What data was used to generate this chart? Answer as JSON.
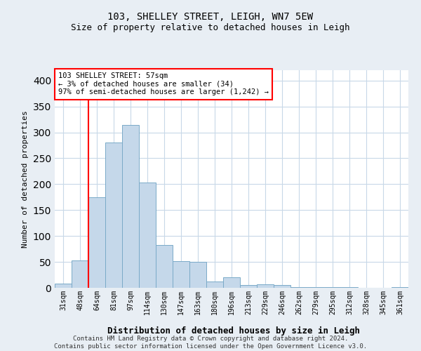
{
  "title1": "103, SHELLEY STREET, LEIGH, WN7 5EW",
  "title2": "Size of property relative to detached houses in Leigh",
  "xlabel": "Distribution of detached houses by size in Leigh",
  "ylabel": "Number of detached properties",
  "bar_color": "#c5d8ea",
  "bar_edge_color": "#7aaac8",
  "categories": [
    "31sqm",
    "48sqm",
    "64sqm",
    "81sqm",
    "97sqm",
    "114sqm",
    "130sqm",
    "147sqm",
    "163sqm",
    "180sqm",
    "196sqm",
    "213sqm",
    "229sqm",
    "246sqm",
    "262sqm",
    "279sqm",
    "295sqm",
    "312sqm",
    "328sqm",
    "345sqm",
    "361sqm"
  ],
  "values": [
    8,
    53,
    175,
    280,
    315,
    203,
    83,
    52,
    50,
    12,
    21,
    5,
    7,
    5,
    2,
    2,
    1,
    1,
    0,
    0,
    1
  ],
  "ylim": [
    0,
    420
  ],
  "yticks": [
    0,
    50,
    100,
    150,
    200,
    250,
    300,
    350,
    400
  ],
  "property_bar_index": 1,
  "annotation_text_line1": "103 SHELLEY STREET: 57sqm",
  "annotation_text_line2": "← 3% of detached houses are smaller (34)",
  "annotation_text_line3": "97% of semi-detached houses are larger (1,242) →",
  "annotation_box_color": "white",
  "annotation_box_edge_color": "red",
  "vertical_line_color": "red",
  "footer_line1": "Contains HM Land Registry data © Crown copyright and database right 2024.",
  "footer_line2": "Contains public sector information licensed under the Open Government Licence v3.0.",
  "background_color": "#e8eef4",
  "plot_background_color": "white",
  "grid_color": "#c8d8e8"
}
